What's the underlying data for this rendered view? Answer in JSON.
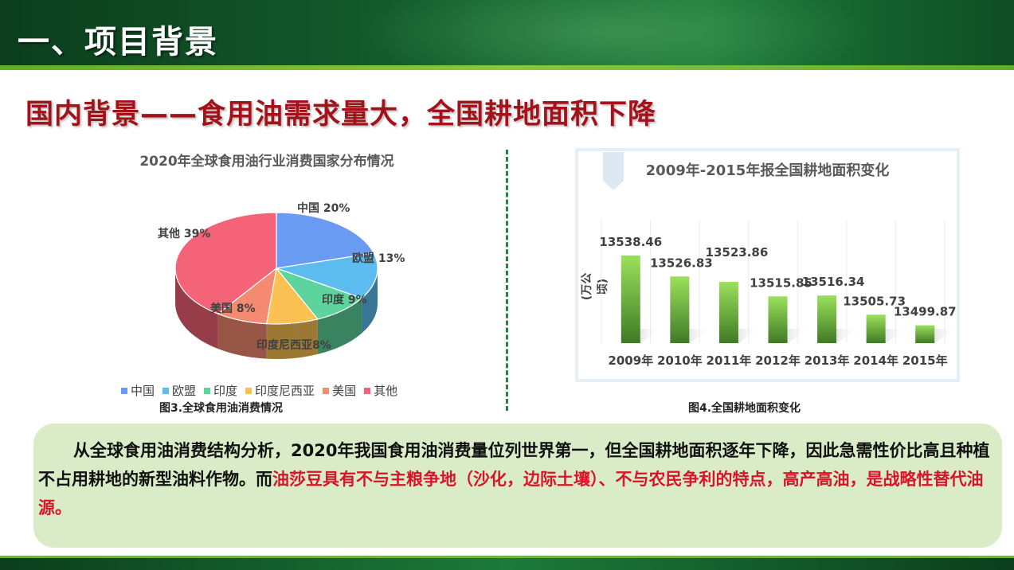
{
  "header": {
    "title": "一、项目背景"
  },
  "subtitle": "国内背景——食用油需求量大，全国耕地面积下降",
  "pie_chart": {
    "caption": "图3.全球食用油消费情况",
    "chart_data": {
      "type": "pie",
      "title": "2020年全球食用油行业消费国家分布情况",
      "labels": [
        "中国",
        "欧盟",
        "印度",
        "印度尼西亚",
        "美国",
        "其他"
      ],
      "values": [
        20,
        13,
        9,
        8,
        8,
        39
      ],
      "colors": [
        "#6a9bf2",
        "#5cbcf0",
        "#5dd39d",
        "#fcc153",
        "#f48a6f",
        "#f46377"
      ],
      "data_labels": [
        "中国 20%",
        "欧盟 13%",
        "印度 9%",
        "印度尼西亚8%",
        "美国 8%",
        "其他 39%"
      ],
      "legend_position": "bottom"
    }
  },
  "bar_chart": {
    "caption": "图4.全国耕地面积变化",
    "chart_data": {
      "type": "bar",
      "title": "2009年-2015年报全国耕地面积变化",
      "ylabel": "(万公顷)",
      "categories": [
        "2009年",
        "2010年",
        "2011年",
        "2012年",
        "2013年",
        "2014年",
        "2015年"
      ],
      "values": [
        13538.46,
        13526.83,
        13523.86,
        13515.85,
        13516.34,
        13505.73,
        13499.87
      ],
      "data_labels": [
        "13538.46",
        "13526.83",
        "13523.86",
        "13515.85",
        "13516.34",
        "13505.73",
        "13499.87"
      ],
      "bar_color_top": "#9be05c",
      "bar_color_bottom": "#3f7a25",
      "grid": true
    }
  },
  "summary": {
    "part1": "从全球食用油消费结构分析，2020年我国食用油消费量位列世界第一，但全国耕地面积逐年下降，因此急需性价比高且种植不占用耕地的新型油料作物。而",
    "highlight": "油莎豆具有不与主粮争地（沙化，边际土壤）、不与农民争利的特点，高产高油，是战略性替代油源。"
  }
}
